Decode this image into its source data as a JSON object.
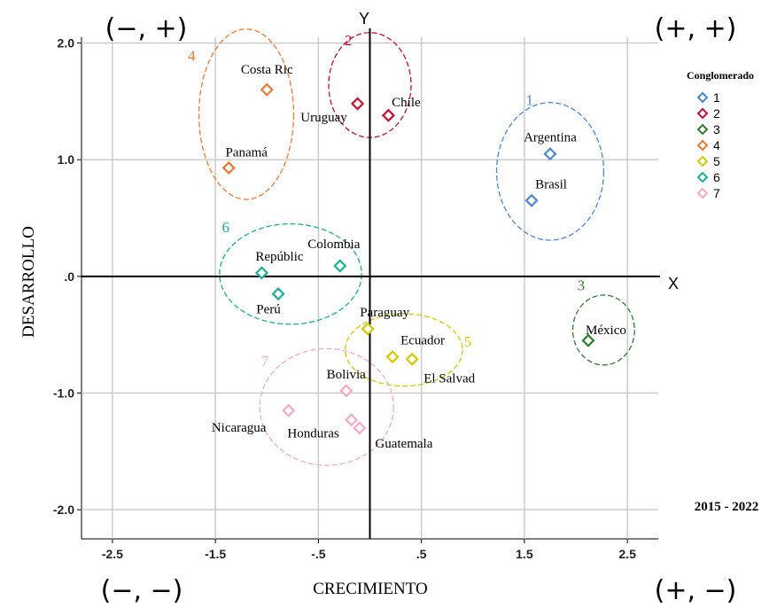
{
  "chart_data": {
    "type": "scatter",
    "xlabel": "CRECIMIENTO",
    "ylabel": "DESARROLLO",
    "xlim": [
      -2.8,
      2.8
    ],
    "ylim": [
      -2.25,
      2.05
    ],
    "x_ticks": [
      -2.5,
      -1.5,
      -0.5,
      0.5,
      1.5,
      2.5
    ],
    "x_tick_labels": [
      "-2.5",
      "-1.5",
      "-.5",
      ".5",
      "1.5",
      "2.5"
    ],
    "y_ticks": [
      2.0,
      1.0,
      0.0,
      -1.0,
      -2.0
    ],
    "y_tick_labels": [
      "2.0",
      "1.0",
      ".0",
      "-1.0",
      "-2.0"
    ],
    "grid": true,
    "axis_names": {
      "x": "X",
      "y": "Y"
    },
    "quadrants": {
      "top_left": "(−, +)",
      "top_right": "(+, +)",
      "bottom_left": "(−, −)",
      "bottom_right": "(+, −)"
    },
    "period": "2015 - 2022",
    "legend": {
      "title": "Conglomerado",
      "position": "right"
    },
    "clusters": [
      {
        "id": "1",
        "color": "#4a86d6",
        "number_label": "1",
        "circle": {
          "cx": 1.75,
          "cy": 0.9,
          "rx": 0.52,
          "ry": 0.59
        },
        "number_pos": [
          1.55,
          1.47
        ]
      },
      {
        "id": "2",
        "color": "#c8102e",
        "number_label": "2",
        "circle": {
          "cx": 0.0,
          "cy": 1.64,
          "rx": 0.4,
          "ry": 0.45
        },
        "number_pos": [
          -0.21,
          1.98
        ]
      },
      {
        "id": "3",
        "color": "#2e7d32",
        "number_label": "3",
        "circle": {
          "cx": 2.27,
          "cy": -0.46,
          "rx": 0.3,
          "ry": 0.3
        },
        "number_pos": [
          2.05,
          -0.12
        ]
      },
      {
        "id": "4",
        "color": "#f07830",
        "number_label": "4",
        "circle": {
          "cx": -1.2,
          "cy": 1.39,
          "rx": 0.46,
          "ry": 0.73
        },
        "number_pos": [
          -1.73,
          1.85
        ]
      },
      {
        "id": "5",
        "color": "#d6c800",
        "number_label": "5",
        "circle": {
          "cx": 0.33,
          "cy": -0.63,
          "rx": 0.57,
          "ry": 0.31
        },
        "number_pos": [
          0.95,
          -0.6
        ]
      },
      {
        "id": "6",
        "color": "#1aae98",
        "number_label": "6",
        "circle": {
          "cx": -0.77,
          "cy": 0.02,
          "rx": 0.69,
          "ry": 0.43
        },
        "number_pos": [
          -1.4,
          0.38
        ]
      },
      {
        "id": "7",
        "color": "#f4a9c8",
        "number_label": "7",
        "circle": {
          "cx": -0.42,
          "cy": -1.12,
          "rx": 0.65,
          "ry": 0.5
        },
        "number_pos": [
          -1.02,
          -0.77
        ]
      }
    ],
    "series": [
      {
        "name": "1",
        "points": [
          {
            "label": "Argentina",
            "x": 1.75,
            "y": 1.05
          },
          {
            "label": "Brasil",
            "x": 1.57,
            "y": 0.65
          }
        ]
      },
      {
        "name": "2",
        "points": [
          {
            "label": "Uruguay",
            "x": -0.12,
            "y": 1.48
          },
          {
            "label": "Chile",
            "x": 0.18,
            "y": 1.38
          }
        ]
      },
      {
        "name": "3",
        "points": [
          {
            "label": "México",
            "x": 2.12,
            "y": -0.55
          }
        ]
      },
      {
        "name": "4",
        "points": [
          {
            "label": "Costa Ric",
            "x": -1.0,
            "y": 1.6
          },
          {
            "label": "Panamá",
            "x": -1.37,
            "y": 0.93
          }
        ]
      },
      {
        "name": "5",
        "points": [
          {
            "label": "Paraguay",
            "x": -0.02,
            "y": -0.45
          },
          {
            "label": "Ecuador",
            "x": 0.22,
            "y": -0.69
          },
          {
            "label": "El Salvad",
            "x": 0.41,
            "y": -0.71
          }
        ]
      },
      {
        "name": "6",
        "points": [
          {
            "label": "Colombia",
            "x": -0.29,
            "y": 0.09
          },
          {
            "label": "Repúblic",
            "x": -1.05,
            "y": 0.03
          },
          {
            "label": "Perú",
            "x": -0.89,
            "y": -0.15
          }
        ]
      },
      {
        "name": "7",
        "points": [
          {
            "label": "Bolivia",
            "x": -0.23,
            "y": -0.98
          },
          {
            "label": "Nicaragua",
            "x": -0.79,
            "y": -1.15
          },
          {
            "label": "Honduras",
            "x": -0.18,
            "y": -1.23
          },
          {
            "label": "Guatemala",
            "x": -0.1,
            "y": -1.3
          }
        ]
      }
    ]
  }
}
